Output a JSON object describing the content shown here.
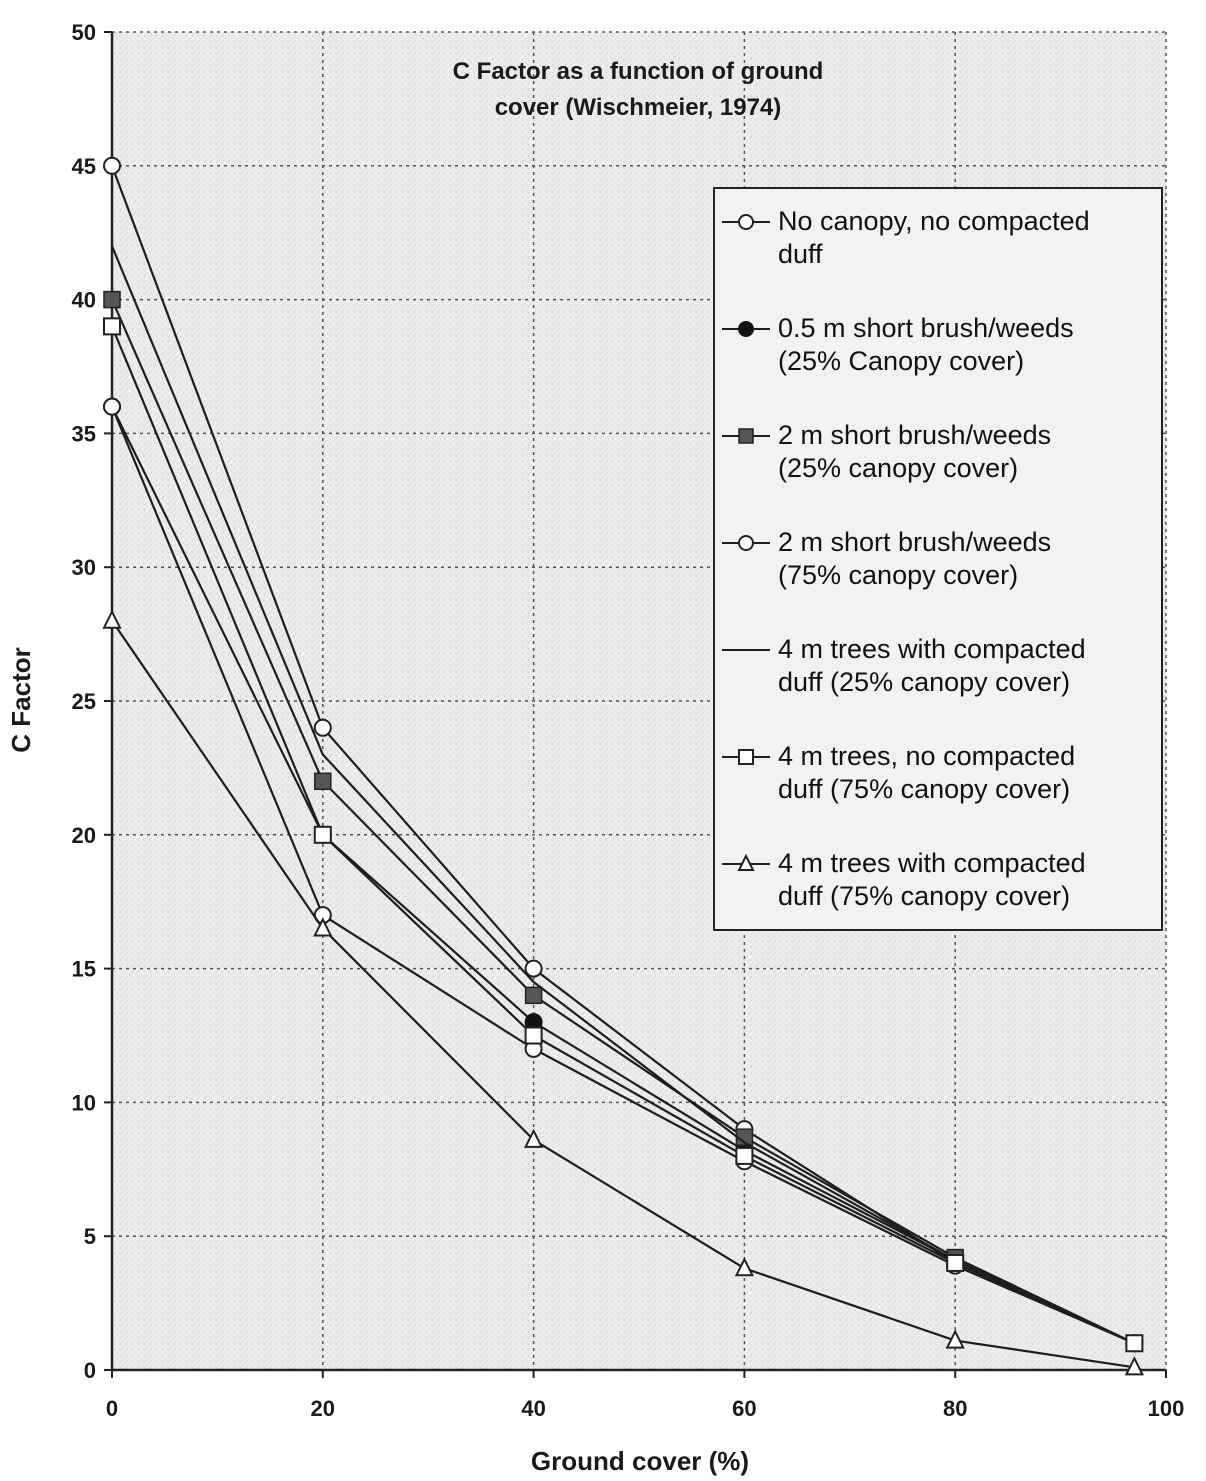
{
  "chart_data": {
    "type": "line",
    "title_lines": [
      "C Factor as a function of ground",
      "cover (Wischmeier, 1974)"
    ],
    "xlabel": "Ground cover (%)",
    "ylabel": "C Factor",
    "xlim": [
      0,
      100
    ],
    "ylim": [
      0,
      50
    ],
    "x_ticks": [
      0,
      20,
      40,
      60,
      80,
      100
    ],
    "y_ticks": [
      0,
      5,
      10,
      15,
      20,
      25,
      30,
      35,
      40,
      45,
      50
    ],
    "grid": true,
    "legend_position": "top-right",
    "x": [
      0,
      20,
      40,
      60,
      80,
      97
    ],
    "series": [
      {
        "name_lines": [
          "No canopy, no compacted",
          "duff"
        ],
        "marker": "circle-open",
        "values": [
          45,
          24,
          15,
          9,
          4,
          1
        ]
      },
      {
        "name_lines": [
          "0.5 m short brush/weeds",
          "(25% Canopy cover)"
        ],
        "marker": "circle-filled",
        "values": [
          36,
          20,
          13,
          8.2,
          4.1,
          1
        ]
      },
      {
        "name_lines": [
          "2 m short brush/weeds",
          "(25% canopy cover)"
        ],
        "marker": "square-filled",
        "values": [
          40,
          22,
          14,
          8.7,
          4.2,
          1
        ]
      },
      {
        "name_lines": [
          "2 m short brush/weeds",
          "(75% canopy cover)"
        ],
        "marker": "circle-open",
        "values": [
          36,
          17,
          12,
          7.8,
          3.9,
          1
        ]
      },
      {
        "name_lines": [
          "4 m trees with compacted",
          "duff (25% canopy cover)"
        ],
        "marker": "none",
        "values": [
          42,
          23,
          14.5,
          8.5,
          4.1,
          1
        ]
      },
      {
        "name_lines": [
          "4 m trees, no compacted",
          "duff (75% canopy cover)"
        ],
        "marker": "square-open",
        "values": [
          39,
          20,
          12.5,
          8,
          4,
          1
        ]
      },
      {
        "name_lines": [
          "4 m trees with compacted",
          "duff (75% canopy cover)"
        ],
        "marker": "triangle-open",
        "values": [
          28,
          16.5,
          8.6,
          3.8,
          1.1,
          0.1
        ]
      }
    ]
  }
}
